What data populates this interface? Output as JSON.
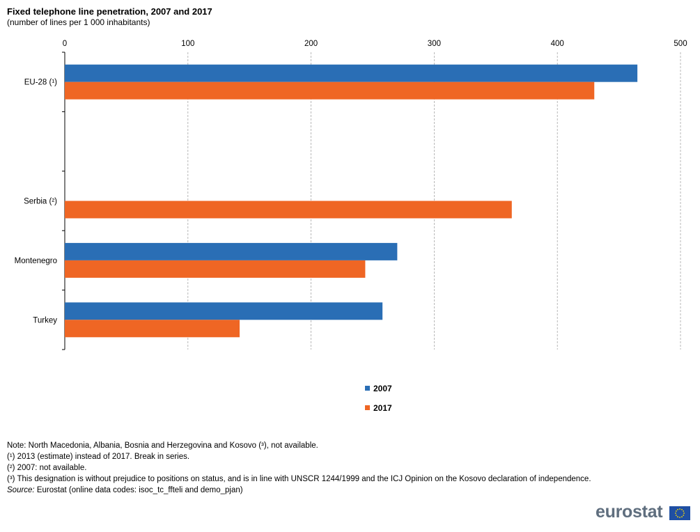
{
  "title": "Fixed telephone line penetration, 2007 and 2017",
  "subtitle": "(number of lines per 1 000 inhabitants)",
  "chart_data": {
    "type": "bar",
    "orientation": "horizontal",
    "categories": [
      "EU-28 (¹)",
      "",
      "Serbia (²)",
      "Montenegro",
      "Turkey"
    ],
    "series": [
      {
        "name": "2007",
        "color": "#2a6eb5",
        "values": [
          465,
          null,
          null,
          270,
          258
        ]
      },
      {
        "name": "2017",
        "color": "#ef6624",
        "values": [
          430,
          null,
          363,
          244,
          142
        ]
      }
    ],
    "xlim": [
      0,
      500
    ],
    "xticks": [
      "0",
      "100",
      "200",
      "300",
      "400",
      "500"
    ],
    "xaxis_position": "top",
    "grid": "vertical dashed",
    "legend_position": "bottom-center"
  },
  "legend": {
    "items": [
      {
        "label": "2007",
        "color": "#2a6eb5"
      },
      {
        "label": "2017",
        "color": "#ef6624"
      }
    ]
  },
  "notes": {
    "line1": "Note: North Macedonia, Albania, Bosnia and Herzegovina and Kosovo (³), not available.",
    "line2": "(¹) 2013 (estimate) instead of 2017. Break in series.",
    "line3": "(²) 2007: not available.",
    "line4": "(³) This designation is without prejudice to positions on status, and is in line with UNSCR 1244/1999 and the ICJ Opinion on the Kosovo declaration of independence.",
    "source_label": "Source:",
    "source_text": " Eurostat (online data codes: isoc_tc_ffteli and demo_pjan)"
  },
  "logo": {
    "text": "eurostat",
    "icon": "eu-flag-icon"
  }
}
